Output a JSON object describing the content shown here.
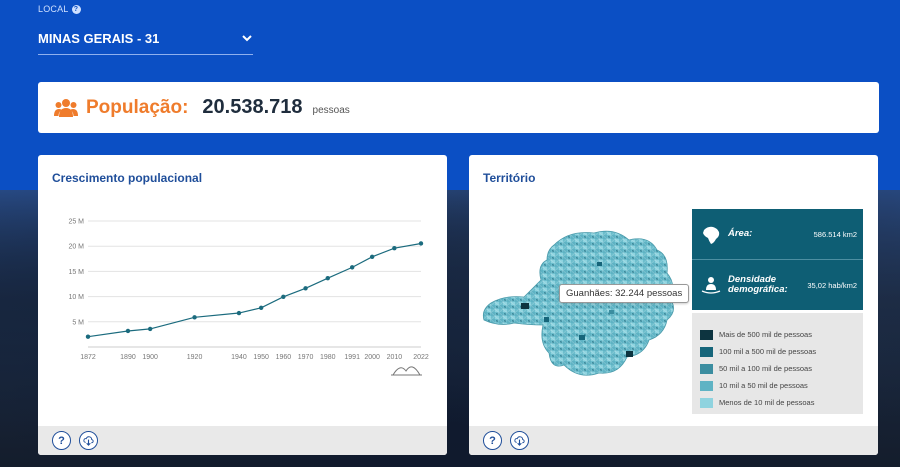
{
  "local": {
    "label": "LOCAL",
    "help": "?",
    "selected": "MINAS GERAIS - 31"
  },
  "population": {
    "label": "População:",
    "value": "20.538.718",
    "unit": "pessoas"
  },
  "growth_panel": {
    "title": "Crescimento populacional",
    "help": "?"
  },
  "territory_panel": {
    "title": "Território",
    "help": "?",
    "tooltip": "Guanhães: 32.244 pessoas",
    "area_label": "Área:",
    "area_value": "586.514 km2",
    "density_label": "Densidade demográfica:",
    "density_value": "35,02 hab/km2",
    "legend": [
      {
        "label": "Mais de 500 mil de pessoas",
        "color": "#0d3440"
      },
      {
        "label": "100 mil a 500 mil de pessoas",
        "color": "#16657a"
      },
      {
        "label": "50 mil a 100 mil de pessoas",
        "color": "#3b8da0"
      },
      {
        "label": "10 mil a 50 mil de pessoas",
        "color": "#5fb3c4"
      },
      {
        "label": "Menos de 10 mil de pessoas",
        "color": "#8fd3df"
      }
    ]
  },
  "colors": {
    "brand_blue": "#0b4fc4",
    "accent_orange": "#ef7c2c",
    "title_blue": "#1f4e9a",
    "line_teal": "#1b6b7e"
  },
  "chart_data": {
    "type": "line",
    "title": "Crescimento populacional",
    "xlabel": "",
    "ylabel": "",
    "x": [
      1872,
      1890,
      1900,
      1920,
      1940,
      1950,
      1960,
      1970,
      1980,
      1991,
      2000,
      2010,
      2022
    ],
    "series": [
      {
        "values": [
          2.04,
          3.18,
          3.59,
          5.89,
          6.74,
          7.78,
          9.96,
          11.65,
          13.65,
          15.8,
          17.9,
          19.6,
          20.54
        ]
      }
    ],
    "ylim": [
      0,
      25
    ],
    "yticks": [
      5,
      10,
      15,
      20,
      25
    ],
    "ytick_labels": [
      "5 M",
      "10 M",
      "15 M",
      "20 M",
      "25 M"
    ],
    "grid": true
  }
}
